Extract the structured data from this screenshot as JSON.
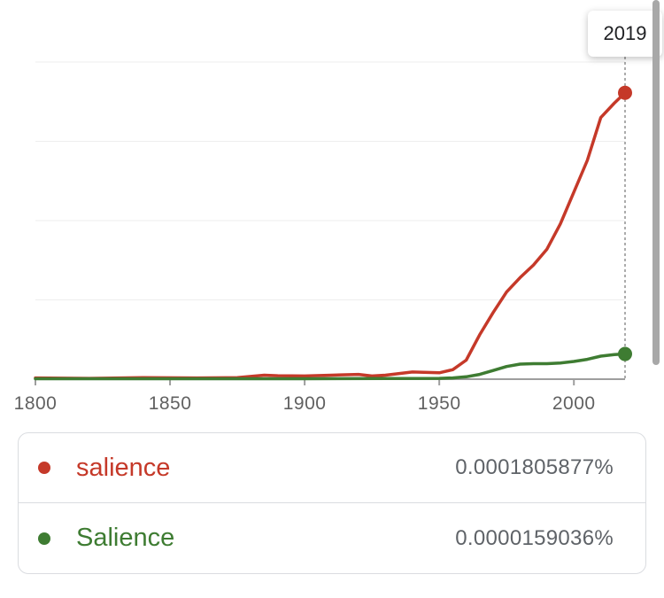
{
  "tooltip": {
    "year": "2019"
  },
  "chart_data": {
    "type": "line",
    "xlabel": "",
    "ylabel": "",
    "xlim": [
      1800,
      2019
    ],
    "ylim": [
      0,
      0.0002
    ],
    "x_ticks": [
      1800,
      1850,
      1900,
      1950,
      2000
    ],
    "y_gridlines": [
      5e-05,
      0.0001,
      0.00015,
      0.0002
    ],
    "grid": true,
    "hover_year": 2019,
    "series": [
      {
        "name": "salience",
        "color": "#c53929",
        "x": [
          1800,
          1820,
          1840,
          1860,
          1875,
          1885,
          1890,
          1900,
          1910,
          1920,
          1925,
          1930,
          1940,
          1950,
          1955,
          1960,
          1965,
          1970,
          1975,
          1980,
          1985,
          1990,
          1995,
          2000,
          2005,
          2010,
          2015,
          2019
        ],
        "y": [
          8e-07,
          5e-07,
          1e-06,
          8e-07,
          1e-06,
          2.5e-06,
          2.2e-06,
          2e-06,
          2.5e-06,
          3e-06,
          2e-06,
          2.5e-06,
          4.5e-06,
          4e-06,
          6e-06,
          1.2e-05,
          2.8e-05,
          4.2e-05,
          5.5e-05,
          6.4e-05,
          7.2e-05,
          8.2e-05,
          9.8e-05,
          0.000118,
          0.000138,
          0.000165,
          0.000174,
          0.0001805877
        ]
      },
      {
        "name": "Salience",
        "color": "#3e7c32",
        "x": [
          1800,
          1850,
          1900,
          1950,
          1955,
          1960,
          1965,
          1970,
          1975,
          1980,
          1985,
          1990,
          1995,
          2000,
          2005,
          2010,
          2015,
          2019
        ],
        "y": [
          3e-07,
          3e-07,
          3e-07,
          5e-07,
          8e-07,
          1.5e-06,
          3e-06,
          5.5e-06,
          8e-06,
          9.5e-06,
          9.8e-06,
          9.8e-06,
          1.02e-05,
          1.12e-05,
          1.25e-05,
          1.45e-05,
          1.55e-05,
          1.59036e-05
        ]
      }
    ]
  },
  "legend": [
    {
      "term": "salience",
      "value": "0.0001805877%",
      "color": "#c53929"
    },
    {
      "term": "Salience",
      "value": "0.0000159036%",
      "color": "#3e7c32"
    }
  ]
}
